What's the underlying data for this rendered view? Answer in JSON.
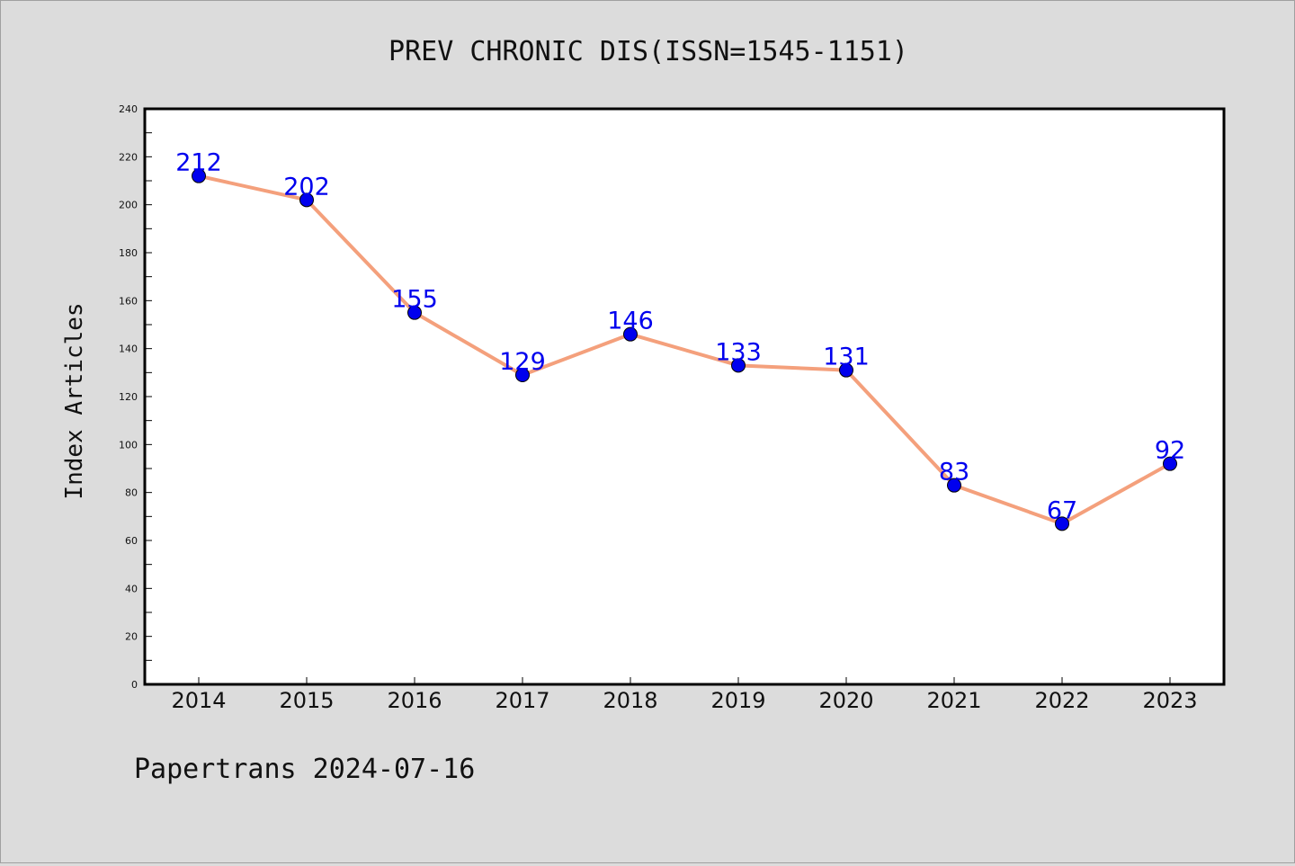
{
  "chart_data": {
    "type": "line",
    "title": "PREV CHRONIC DIS(ISSN=1545-1151)",
    "xlabel": "",
    "ylabel": "Index Articles",
    "categories": [
      "2014",
      "2015",
      "2016",
      "2017",
      "2018",
      "2019",
      "2020",
      "2021",
      "2022",
      "2023"
    ],
    "series": [
      {
        "values": [
          212,
          202,
          155,
          129,
          146,
          133,
          131,
          83,
          67,
          92
        ]
      }
    ],
    "ylim": [
      0,
      240
    ],
    "yticks": [
      0,
      20,
      40,
      60,
      80,
      100,
      120,
      140,
      160,
      180,
      200,
      220,
      240
    ],
    "grid": false,
    "colors": {
      "line": "#f4a07c",
      "marker": "#0000ee",
      "label": "#0000ee",
      "background": "#dcdcdc",
      "plot_bg": "#ffffff"
    }
  },
  "footer": "Papertrans 2024-07-16"
}
